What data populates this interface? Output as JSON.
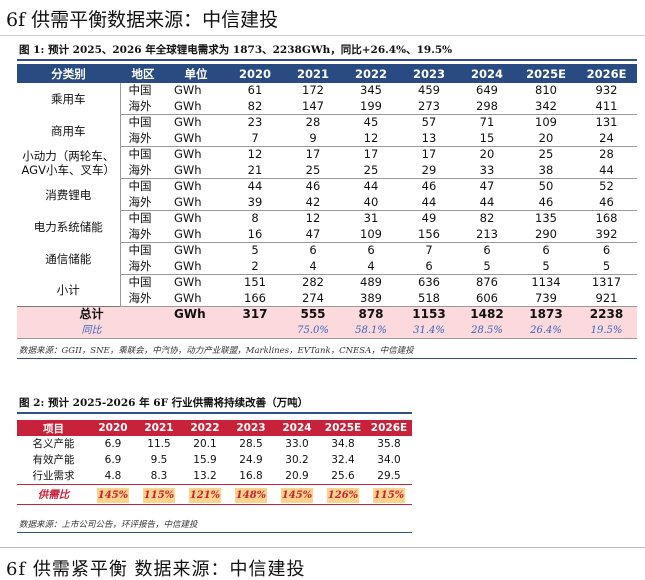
{
  "page": {
    "header": "6f 供需平衡数据来源：中信建投",
    "footer": "6f 供需紧平衡 数据来源：中信建投"
  },
  "figure1": {
    "title": "图 1: 预计 2025、2026 年全球锂电需求为 1873、2238GWh，同比+26.4%、19.5%",
    "headers": [
      "分类别",
      "地区",
      "单位",
      "2020",
      "2021",
      "2022",
      "2023",
      "2024",
      "2025E",
      "2026E"
    ],
    "groups": [
      {
        "category": "乘用车",
        "rows": [
          {
            "region": "中国",
            "unit": "GWh",
            "values": [
              "61",
              "172",
              "345",
              "459",
              "649",
              "810",
              "932"
            ]
          },
          {
            "region": "海外",
            "unit": "GWh",
            "values": [
              "82",
              "147",
              "199",
              "273",
              "298",
              "342",
              "411"
            ]
          }
        ]
      },
      {
        "category": "商用车",
        "rows": [
          {
            "region": "中国",
            "unit": "GWh",
            "values": [
              "23",
              "28",
              "45",
              "57",
              "71",
              "109",
              "131"
            ]
          },
          {
            "region": "海外",
            "unit": "GWh",
            "values": [
              "7",
              "9",
              "12",
              "13",
              "15",
              "20",
              "24"
            ]
          }
        ]
      },
      {
        "category": "小动力（两轮车、AGV小车、叉车）",
        "rows": [
          {
            "region": "中国",
            "unit": "GWh",
            "values": [
              "12",
              "17",
              "17",
              "17",
              "20",
              "25",
              "28"
            ]
          },
          {
            "region": "海外",
            "unit": "GWh",
            "values": [
              "21",
              "25",
              "25",
              "29",
              "33",
              "38",
              "44"
            ]
          }
        ]
      },
      {
        "category": "消费锂电",
        "rows": [
          {
            "region": "中国",
            "unit": "GWh",
            "values": [
              "44",
              "46",
              "44",
              "46",
              "47",
              "50",
              "52"
            ]
          },
          {
            "region": "海外",
            "unit": "GWh",
            "values": [
              "39",
              "42",
              "40",
              "44",
              "44",
              "46",
              "46"
            ]
          }
        ]
      },
      {
        "category": "电力系统储能",
        "rows": [
          {
            "region": "中国",
            "unit": "GWh",
            "values": [
              "8",
              "12",
              "31",
              "49",
              "82",
              "135",
              "168"
            ]
          },
          {
            "region": "海外",
            "unit": "GWh",
            "values": [
              "16",
              "47",
              "109",
              "156",
              "213",
              "290",
              "392"
            ]
          }
        ]
      },
      {
        "category": "通信储能",
        "rows": [
          {
            "region": "中国",
            "unit": "GWh",
            "values": [
              "5",
              "6",
              "6",
              "7",
              "6",
              "6",
              "6"
            ]
          },
          {
            "region": "海外",
            "unit": "GWh",
            "values": [
              "2",
              "4",
              "4",
              "6",
              "5",
              "5",
              "5"
            ]
          }
        ]
      },
      {
        "category": "小计",
        "rows": [
          {
            "region": "中国",
            "unit": "GWh",
            "values": [
              "151",
              "282",
              "489",
              "636",
              "876",
              "1134",
              "1317"
            ]
          },
          {
            "region": "海外",
            "unit": "GWh",
            "values": [
              "166",
              "274",
              "389",
              "518",
              "606",
              "739",
              "921"
            ]
          }
        ]
      }
    ],
    "total": {
      "label": "总计",
      "unit": "GWh",
      "values": [
        "317",
        "555",
        "878",
        "1153",
        "1482",
        "1873",
        "2238"
      ]
    },
    "yoy": {
      "label": "同比",
      "values": [
        "",
        "75.0%",
        "58.1%",
        "31.4%",
        "28.5%",
        "26.4%",
        "19.5%"
      ]
    },
    "source": "数据来源：GGII，SNE，乘联会，中汽协，动力产业联盟，Marklines，EVTank，CNESA，中信建投"
  },
  "figure2": {
    "title": "图 2: 预计 2025-2026 年 6F 行业供需将持续改善（万吨）",
    "headers": [
      "项目",
      "2020",
      "2021",
      "2022",
      "2023",
      "2024",
      "2025E",
      "2026E"
    ],
    "rows": [
      {
        "label": "名义产能",
        "values": [
          "6.9",
          "11.5",
          "20.1",
          "28.5",
          "33.0",
          "34.8",
          "35.8"
        ]
      },
      {
        "label": "有效产能",
        "values": [
          "6.9",
          "9.5",
          "15.9",
          "24.9",
          "30.2",
          "32.4",
          "34.0"
        ]
      },
      {
        "label": "行业需求",
        "values": [
          "4.8",
          "8.3",
          "13.2",
          "16.8",
          "20.9",
          "25.6",
          "29.5"
        ]
      }
    ],
    "ratio": {
      "label": "供需比",
      "values": [
        "145%",
        "115%",
        "121%",
        "148%",
        "145%",
        "126%",
        "115%"
      ]
    },
    "source": "数据来源：上市公司公告，环评报告，中信建投"
  },
  "colors": {
    "table1_header": "#2a4a82",
    "table2_header": "#c8223a",
    "total_row_bg": "#fbd9dc",
    "yoy_text": "#3a66b8",
    "ratio_cell_bg": "#fbd38a"
  }
}
